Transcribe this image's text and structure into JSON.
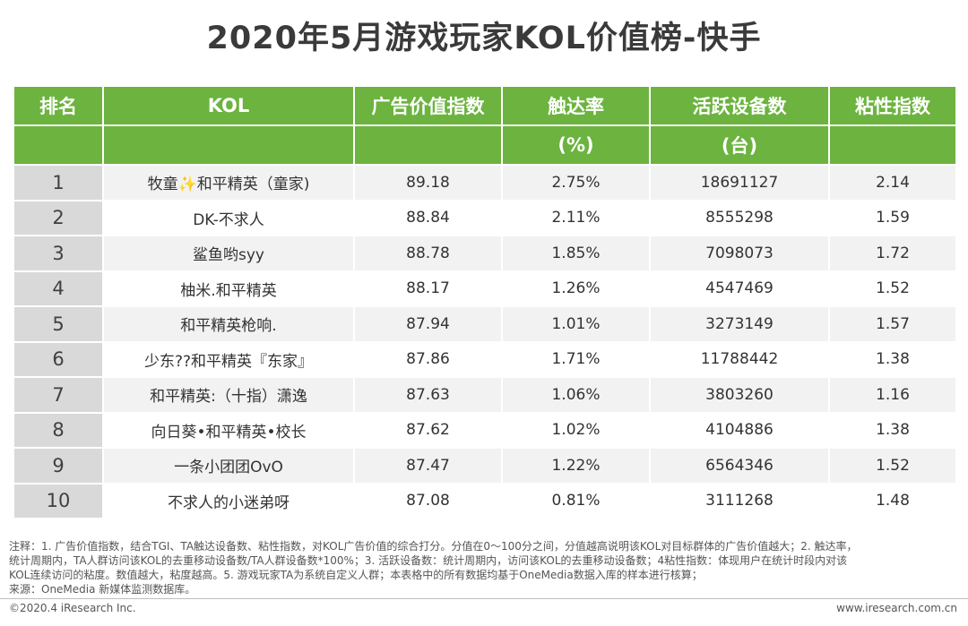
{
  "title": "2020年5月游戏玩家KOL价值榜-快手",
  "table": {
    "headers": [
      {
        "top": "排名",
        "bottom": ""
      },
      {
        "top": "KOL",
        "bottom": ""
      },
      {
        "top": "广告价值指数",
        "bottom": ""
      },
      {
        "top": "触达率",
        "bottom": "(%)"
      },
      {
        "top": "活跃设备数",
        "bottom": "(台)"
      },
      {
        "top": "粘性指数",
        "bottom": ""
      }
    ],
    "rows": [
      [
        "1",
        "牧童✨和平精英（童家)",
        "89.18",
        "2.75%",
        "18691127",
        "2.14"
      ],
      [
        "2",
        "DK-不求人",
        "88.84",
        "2.11%",
        "8555298",
        "1.59"
      ],
      [
        "3",
        "鲨鱼哟syy",
        "88.78",
        "1.85%",
        "7098073",
        "1.72"
      ],
      [
        "4",
        "柚米.和平精英",
        "88.17",
        "1.26%",
        "4547469",
        "1.52"
      ],
      [
        "5",
        "和平精英枪响.",
        "87.94",
        "1.01%",
        "3273149",
        "1.57"
      ],
      [
        "6",
        "少东??和平精英『东家』",
        "87.86",
        "1.71%",
        "11788442",
        "1.38"
      ],
      [
        "7",
        "和平精英:（十指）潇逸",
        "87.63",
        "1.06%",
        "3803260",
        "1.16"
      ],
      [
        "8",
        "向日葵•和平精英•校长",
        "87.62",
        "1.02%",
        "4104886",
        "1.38"
      ],
      [
        "9",
        "一条小团团OvO",
        "87.47",
        "1.22%",
        "6564346",
        "1.52"
      ],
      [
        "10",
        "不求人的小迷弟呀",
        "87.08",
        "0.81%",
        "3111268",
        "1.48"
      ]
    ]
  },
  "notes": {
    "line1": "注释：1. 广告价值指数，结合TGI、TA触达设备数、粘性指数，对KOL广告价值的综合打分。分值在0～100分之间，分值越高说明该KOL对目标群体的广告价值越大；2. 触达率，",
    "line2": "统计周期内，TA人群访问该KOL的去重移动设备数/TA人群设备数*100%；3. 活跃设备数：统计周期内，访问该KOL的去重移动设备数；4粘性指数：体现用户在统计时段内对该",
    "line3": "KOL连续访问的粘度。数值越大，粘度越高。5. 游戏玩家TA为系统自定义人群；本表格中的所有数据均基于OneMedia数据入库的样本进行核算；",
    "source": "来源：OneMedia 新媒体监测数据库。"
  },
  "footer": {
    "copyright": "©2020.4 iResearch Inc.",
    "url": "www.iresearch.com.cn"
  },
  "colors": {
    "header_green": "#6cb33f",
    "rank_gray": "#d9d9d9",
    "row_stripe": "#f2f2f2"
  }
}
